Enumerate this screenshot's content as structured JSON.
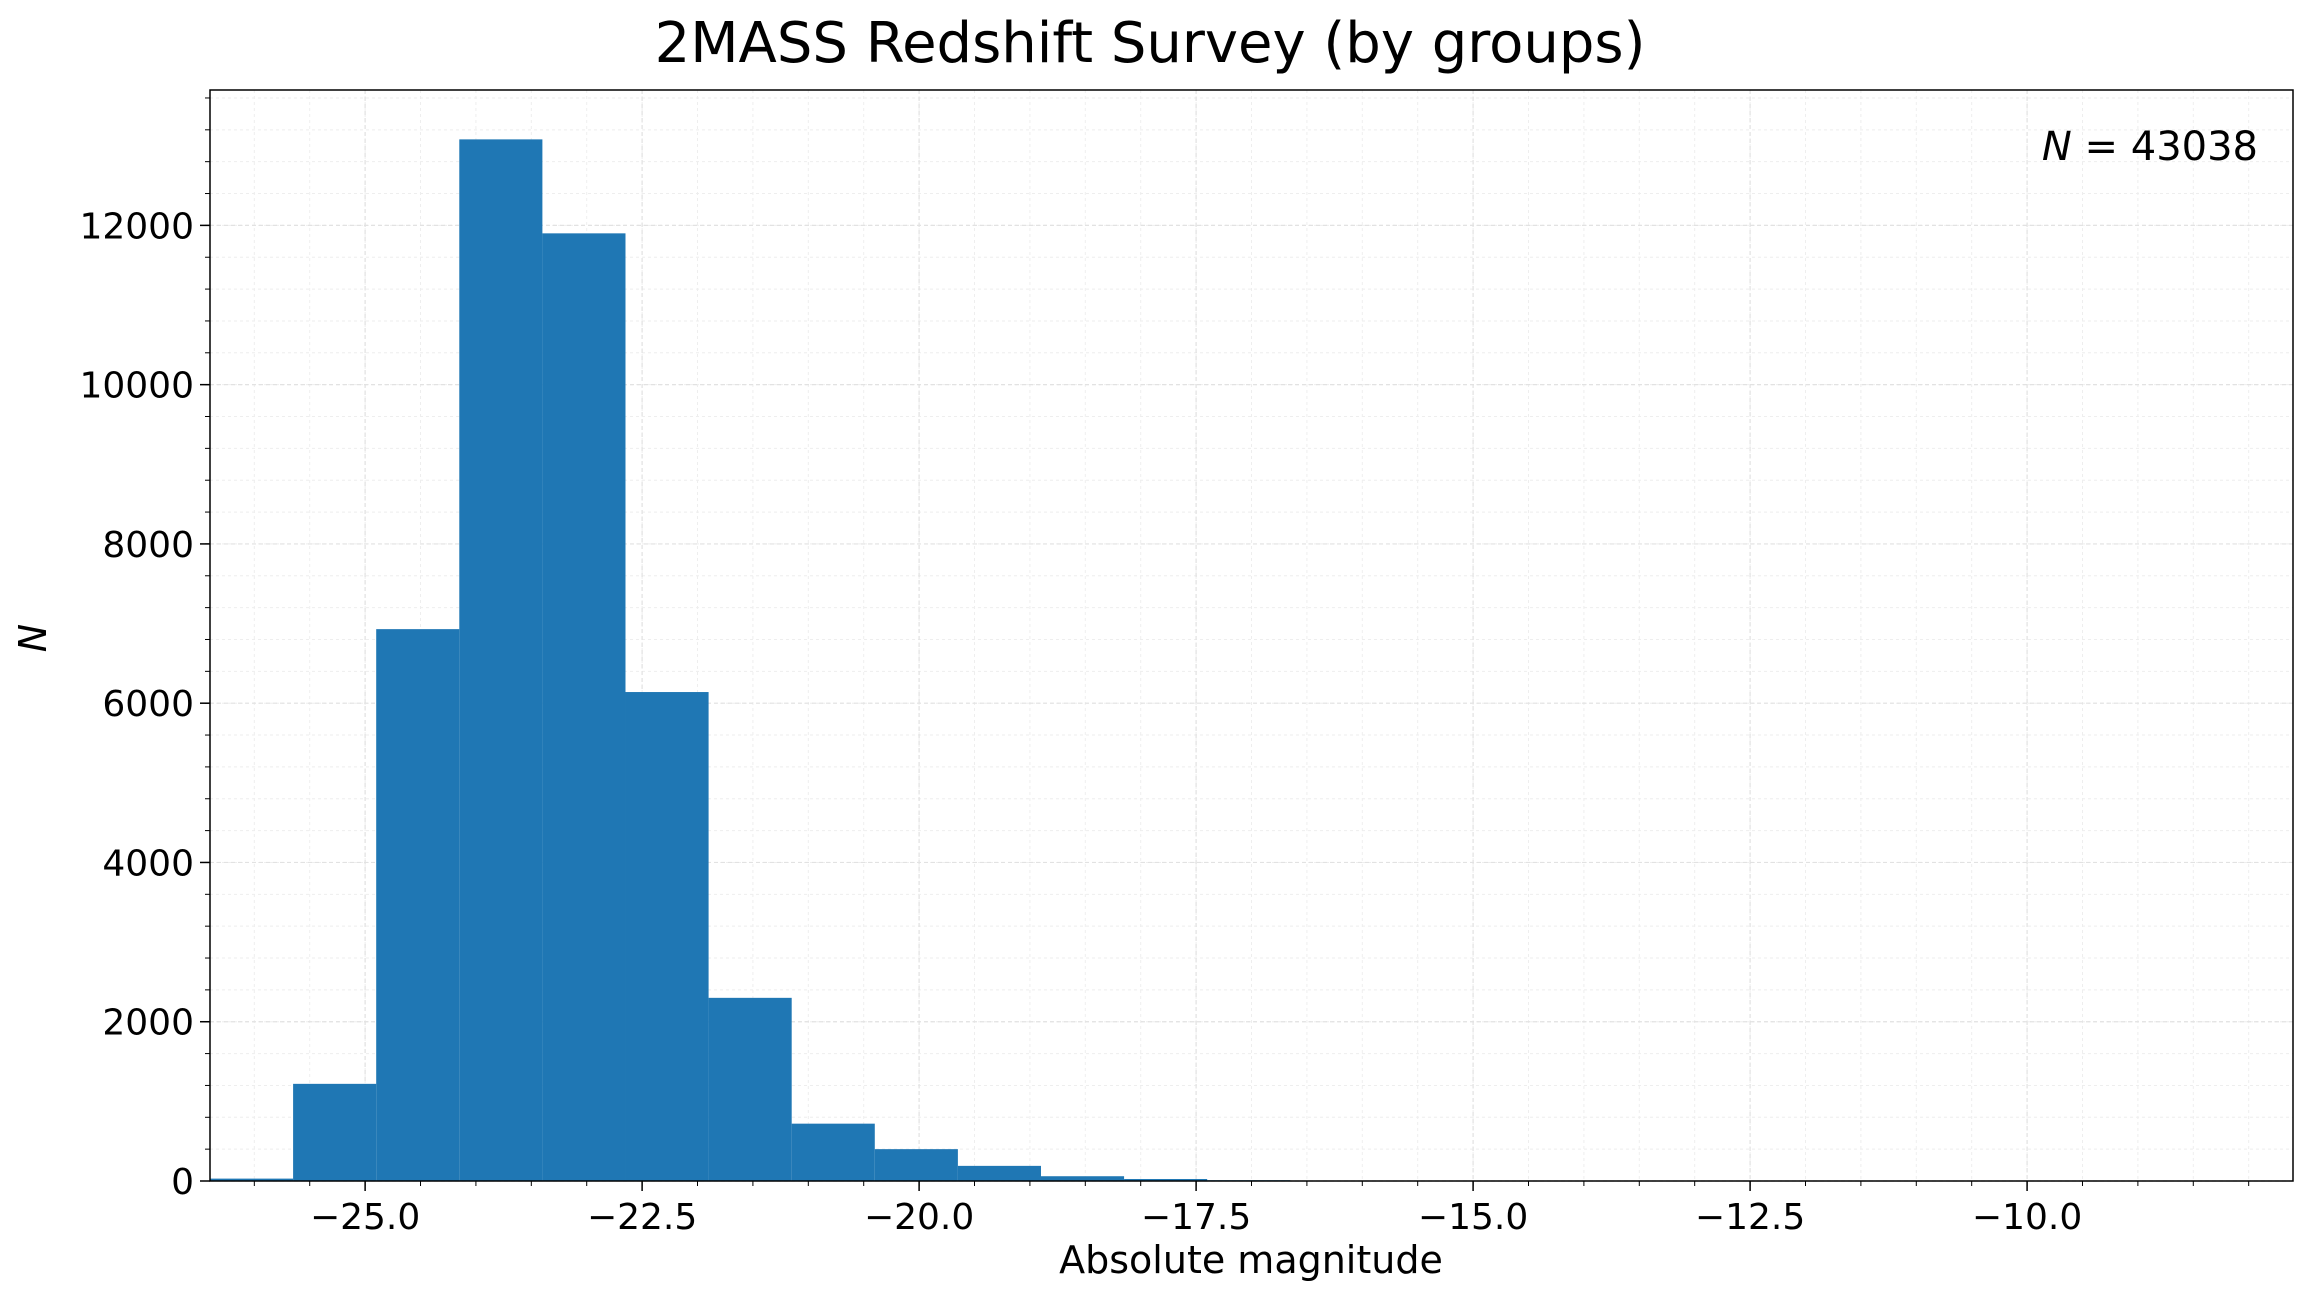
{
  "chart_data": {
    "type": "bar",
    "title": "2MASS Redshift Survey (by groups)",
    "xlabel": "Absolute magnitude",
    "ylabel": "N",
    "annotation": {
      "symbol": "N",
      "value": "43038"
    },
    "legend": "none",
    "grid": "major and minor, light",
    "xlim": [
      -26.4,
      -7.6
    ],
    "ylim": [
      0,
      13700
    ],
    "x_ticks": [
      -25.0,
      -22.5,
      -20.0,
      -17.5,
      -15.0,
      -12.5,
      -10.0
    ],
    "x_tick_labels": [
      "−25.0",
      "−22.5",
      "−20.0",
      "−17.5",
      "−15.0",
      "−12.5",
      "−10.0"
    ],
    "y_ticks": [
      0,
      2000,
      4000,
      6000,
      8000,
      10000,
      12000
    ],
    "y_tick_labels": [
      "0",
      "2000",
      "4000",
      "6000",
      "8000",
      "10000",
      "12000"
    ],
    "bin_edges": [
      -26.4,
      -25.65,
      -24.9,
      -24.15,
      -23.4,
      -22.65,
      -21.9,
      -21.15,
      -20.4,
      -19.65,
      -18.9,
      -18.15,
      -17.4,
      -16.65,
      -15.9,
      -15.15,
      -14.4,
      -13.65,
      -12.9,
      -12.15,
      -11.4,
      -10.65,
      -9.9,
      -9.15
    ],
    "counts": [
      30,
      1220,
      6930,
      13080,
      11900,
      6140,
      2300,
      720,
      400,
      190,
      60,
      25,
      10,
      3,
      2,
      1,
      1,
      0,
      0,
      0,
      0,
      0,
      0
    ],
    "bar_color": "#1f77b4"
  }
}
